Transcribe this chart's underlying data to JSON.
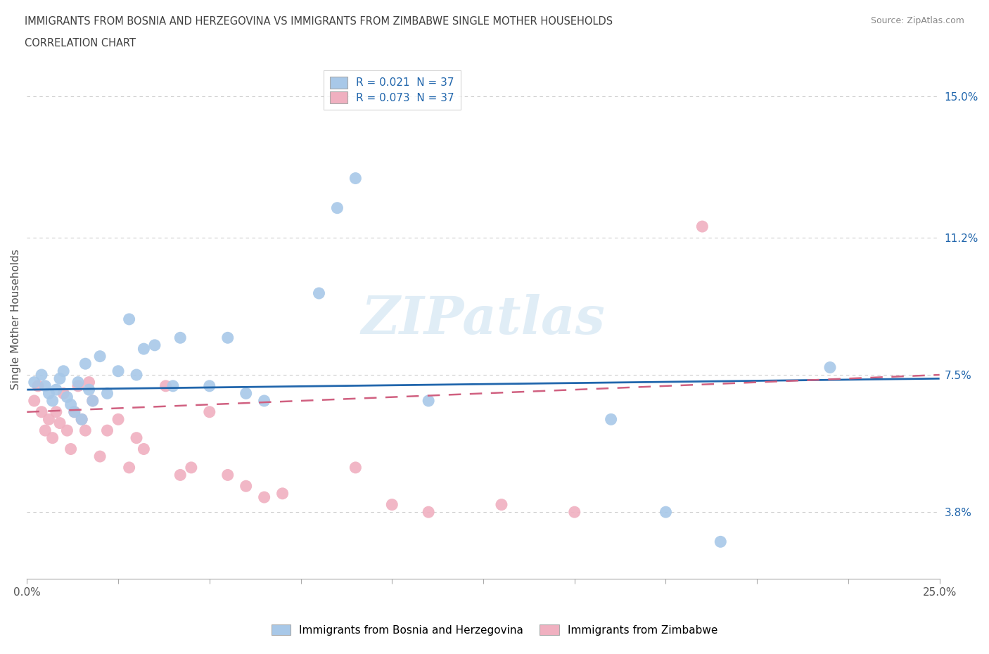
{
  "title_line1": "IMMIGRANTS FROM BOSNIA AND HERZEGOVINA VS IMMIGRANTS FROM ZIMBABWE SINGLE MOTHER HOUSEHOLDS",
  "title_line2": "CORRELATION CHART",
  "source": "Source: ZipAtlas.com",
  "ylabel": "Single Mother Households",
  "xlim": [
    0.0,
    0.25
  ],
  "ylim": [
    0.02,
    0.16
  ],
  "ytick_positions": [
    0.038,
    0.075,
    0.112,
    0.15
  ],
  "ytick_labels": [
    "3.8%",
    "7.5%",
    "11.2%",
    "15.0%"
  ],
  "watermark": "ZIPatlas",
  "legend_label1": "Immigrants from Bosnia and Herzegovina",
  "legend_label2": "Immigrants from Zimbabwe",
  "color_blue": "#a8c8e8",
  "color_pink": "#f0b0c0",
  "color_blue_line": "#2166ac",
  "color_pink_line": "#d06080",
  "blue_x": [
    0.002,
    0.004,
    0.005,
    0.006,
    0.007,
    0.008,
    0.009,
    0.01,
    0.011,
    0.012,
    0.013,
    0.014,
    0.015,
    0.016,
    0.017,
    0.018,
    0.02,
    0.022,
    0.025,
    0.028,
    0.03,
    0.032,
    0.035,
    0.04,
    0.042,
    0.05,
    0.055,
    0.06,
    0.065,
    0.08,
    0.085,
    0.09,
    0.11,
    0.16,
    0.175,
    0.19,
    0.22
  ],
  "blue_y": [
    0.073,
    0.075,
    0.072,
    0.07,
    0.068,
    0.071,
    0.074,
    0.076,
    0.069,
    0.067,
    0.065,
    0.073,
    0.063,
    0.078,
    0.071,
    0.068,
    0.08,
    0.07,
    0.076,
    0.09,
    0.075,
    0.082,
    0.083,
    0.072,
    0.085,
    0.072,
    0.085,
    0.07,
    0.068,
    0.097,
    0.12,
    0.128,
    0.068,
    0.063,
    0.038,
    0.03,
    0.077
  ],
  "pink_x": [
    0.002,
    0.003,
    0.004,
    0.005,
    0.006,
    0.007,
    0.008,
    0.009,
    0.01,
    0.011,
    0.012,
    0.013,
    0.014,
    0.015,
    0.016,
    0.017,
    0.018,
    0.02,
    0.022,
    0.025,
    0.028,
    0.03,
    0.032,
    0.038,
    0.042,
    0.045,
    0.05,
    0.055,
    0.06,
    0.065,
    0.07,
    0.09,
    0.1,
    0.11,
    0.13,
    0.15,
    0.185
  ],
  "pink_y": [
    0.068,
    0.072,
    0.065,
    0.06,
    0.063,
    0.058,
    0.065,
    0.062,
    0.07,
    0.06,
    0.055,
    0.065,
    0.072,
    0.063,
    0.06,
    0.073,
    0.068,
    0.053,
    0.06,
    0.063,
    0.05,
    0.058,
    0.055,
    0.072,
    0.048,
    0.05,
    0.065,
    0.048,
    0.045,
    0.042,
    0.043,
    0.05,
    0.04,
    0.038,
    0.04,
    0.038,
    0.115
  ],
  "blue_line_x0": 0.0,
  "blue_line_x1": 0.25,
  "blue_line_y0": 0.071,
  "blue_line_y1": 0.074,
  "pink_line_x0": 0.0,
  "pink_line_x1": 0.25,
  "pink_line_y0": 0.065,
  "pink_line_y1": 0.075
}
